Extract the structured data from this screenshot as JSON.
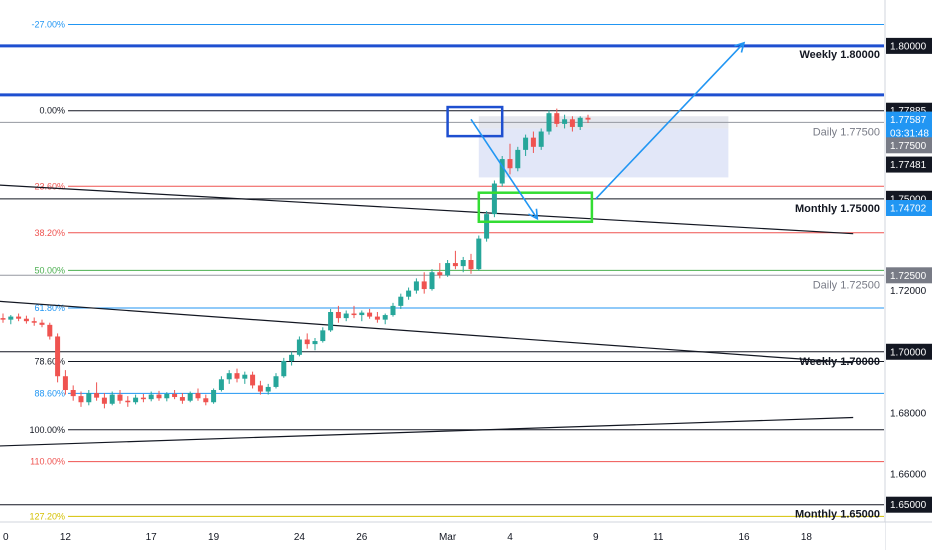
{
  "colors": {
    "up": "#26a69a",
    "down": "#ef5350",
    "blue_level": "#1e4fd0",
    "black_line": "#131722",
    "grey_line": "#9598a1",
    "fib_0": "#131722",
    "fib_236": "#ef5350",
    "fib_382": "#ef5350",
    "fib_50": "#4caf50",
    "fib_618": "#2196f3",
    "fib_786": "#131722",
    "fib_886": "#2196f3",
    "fib_100": "#131722",
    "fib_110": "#ef5350",
    "fib_127": "#d4c000",
    "fib_neg27": "#2196f3",
    "arrow": "#2196f3",
    "zone_fill": "#dde3f7",
    "zone_grey": "#e0e3eb",
    "box_blue": "#1e4fd0",
    "box_green": "#33dd33"
  },
  "chart_data": {
    "type": "candlestick",
    "title": "",
    "y_range": [
      1.645,
      1.815
    ],
    "x_ticks": [
      {
        "label": "0",
        "bar": 0
      },
      {
        "label": "12",
        "bar": 8
      },
      {
        "label": "17",
        "bar": 19
      },
      {
        "label": "19",
        "bar": 27
      },
      {
        "label": "24",
        "bar": 38
      },
      {
        "label": "26",
        "bar": 46
      },
      {
        "label": "Mar",
        "bar": 57
      },
      {
        "label": "4",
        "bar": 65
      },
      {
        "label": "9",
        "bar": 76
      },
      {
        "label": "11",
        "bar": 84
      },
      {
        "label": "16",
        "bar": 95
      },
      {
        "label": "18",
        "bar": 103
      }
    ],
    "bars_per_tick_gap": 8,
    "ohlc": [
      [
        1.711,
        1.7125,
        1.7095,
        1.7105
      ],
      [
        1.7105,
        1.712,
        1.709,
        1.7115
      ],
      [
        1.7115,
        1.7125,
        1.71,
        1.7108
      ],
      [
        1.7108,
        1.7118,
        1.7092,
        1.71
      ],
      [
        1.71,
        1.7112,
        1.7085,
        1.7095
      ],
      [
        1.7095,
        1.7105,
        1.708,
        1.7088
      ],
      [
        1.7088,
        1.7095,
        1.704,
        1.705
      ],
      [
        1.705,
        1.706,
        1.69,
        1.692
      ],
      [
        1.692,
        1.694,
        1.686,
        1.6875
      ],
      [
        1.6875,
        1.689,
        1.684,
        1.6855
      ],
      [
        1.6855,
        1.687,
        1.682,
        1.6835
      ],
      [
        1.6835,
        1.6875,
        1.6825,
        1.6865
      ],
      [
        1.6865,
        1.69,
        1.684,
        1.685
      ],
      [
        1.685,
        1.6865,
        1.6815,
        1.683
      ],
      [
        1.683,
        1.687,
        1.6825,
        1.686
      ],
      [
        1.686,
        1.6875,
        1.683,
        1.684
      ],
      [
        1.684,
        1.6855,
        1.682,
        1.6835
      ],
      [
        1.6835,
        1.686,
        1.6828,
        1.685
      ],
      [
        1.685,
        1.6862,
        1.6835,
        1.6845
      ],
      [
        1.6845,
        1.687,
        1.6838,
        1.686
      ],
      [
        1.686,
        1.6872,
        1.684,
        1.6848
      ],
      [
        1.6848,
        1.6868,
        1.6838,
        1.6862
      ],
      [
        1.6862,
        1.6875,
        1.6845,
        1.6852
      ],
      [
        1.6852,
        1.6865,
        1.683,
        1.684
      ],
      [
        1.684,
        1.687,
        1.6835,
        1.6865
      ],
      [
        1.6865,
        1.688,
        1.684,
        1.6848
      ],
      [
        1.6848,
        1.686,
        1.6825,
        1.6835
      ],
      [
        1.6835,
        1.688,
        1.683,
        1.6875
      ],
      [
        1.6875,
        1.692,
        1.687,
        1.691
      ],
      [
        1.691,
        1.694,
        1.6895,
        1.693
      ],
      [
        1.693,
        1.6945,
        1.69,
        1.6912
      ],
      [
        1.6912,
        1.6935,
        1.6895,
        1.6925
      ],
      [
        1.6925,
        1.6935,
        1.688,
        1.689
      ],
      [
        1.689,
        1.6905,
        1.686,
        1.687
      ],
      [
        1.687,
        1.6895,
        1.686,
        1.6885
      ],
      [
        1.6885,
        1.693,
        1.688,
        1.692
      ],
      [
        1.692,
        1.698,
        1.6915,
        1.697
      ],
      [
        1.697,
        1.7,
        1.6955,
        1.699
      ],
      [
        1.699,
        1.705,
        1.6985,
        1.704
      ],
      [
        1.704,
        1.706,
        1.701,
        1.7025
      ],
      [
        1.7025,
        1.7045,
        1.7005,
        1.7035
      ],
      [
        1.7035,
        1.708,
        1.703,
        1.707
      ],
      [
        1.707,
        1.714,
        1.7065,
        1.713
      ],
      [
        1.713,
        1.715,
        1.7095,
        1.711
      ],
      [
        1.711,
        1.7135,
        1.71,
        1.7125
      ],
      [
        1.7125,
        1.715,
        1.711,
        1.712
      ],
      [
        1.712,
        1.7135,
        1.71,
        1.7128
      ],
      [
        1.7128,
        1.714,
        1.7108,
        1.7115
      ],
      [
        1.7115,
        1.713,
        1.7095,
        1.7105
      ],
      [
        1.7105,
        1.7125,
        1.709,
        1.712
      ],
      [
        1.712,
        1.716,
        1.7115,
        1.715
      ],
      [
        1.715,
        1.719,
        1.714,
        1.718
      ],
      [
        1.718,
        1.721,
        1.717,
        1.72
      ],
      [
        1.72,
        1.724,
        1.719,
        1.723
      ],
      [
        1.723,
        1.726,
        1.719,
        1.7205
      ],
      [
        1.7205,
        1.727,
        1.72,
        1.726
      ],
      [
        1.726,
        1.729,
        1.724,
        1.725
      ],
      [
        1.725,
        1.73,
        1.7245,
        1.729
      ],
      [
        1.729,
        1.733,
        1.727,
        1.728
      ],
      [
        1.728,
        1.731,
        1.726,
        1.73
      ],
      [
        1.73,
        1.732,
        1.7255,
        1.727
      ],
      [
        1.727,
        1.738,
        1.7265,
        1.737
      ],
      [
        1.737,
        1.746,
        1.736,
        1.745
      ],
      [
        1.745,
        1.756,
        1.744,
        1.755
      ],
      [
        1.755,
        1.764,
        1.754,
        1.763
      ],
      [
        1.763,
        1.768,
        1.758,
        1.76
      ],
      [
        1.76,
        1.767,
        1.759,
        1.766
      ],
      [
        1.766,
        1.771,
        1.764,
        1.77
      ],
      [
        1.77,
        1.772,
        1.765,
        1.767
      ],
      [
        1.767,
        1.773,
        1.766,
        1.772
      ],
      [
        1.772,
        1.779,
        1.771,
        1.778
      ],
      [
        1.778,
        1.7795,
        1.7735,
        1.7745
      ],
      [
        1.7745,
        1.7775,
        1.773,
        1.776
      ],
      [
        1.776,
        1.777,
        1.772,
        1.7735
      ],
      [
        1.7735,
        1.777,
        1.7725,
        1.7765
      ],
      [
        1.7765,
        1.7775,
        1.7748,
        1.7759
      ]
    ],
    "fib_levels": [
      {
        "label": "-27.00%",
        "price": 1.807,
        "color_key": "fib_neg27"
      },
      {
        "label": "0.00%",
        "price": 1.7788,
        "color_key": "fib_0"
      },
      {
        "label": "23.60%",
        "price": 1.7541,
        "color_key": "fib_236"
      },
      {
        "label": "38.20%",
        "price": 1.7389,
        "color_key": "fib_382"
      },
      {
        "label": "50.00%",
        "price": 1.7266,
        "color_key": "fib_50"
      },
      {
        "label": "61.80%",
        "price": 1.7143,
        "color_key": "fib_618"
      },
      {
        "label": "78.60%",
        "price": 1.6968,
        "color_key": "fib_786"
      },
      {
        "label": "88.60%",
        "price": 1.6864,
        "color_key": "fib_886"
      },
      {
        "label": "100.00%",
        "price": 1.6745,
        "color_key": "fib_100"
      },
      {
        "label": "110.00%",
        "price": 1.6641,
        "color_key": "fib_110"
      },
      {
        "label": "127.20%",
        "price": 1.6462,
        "color_key": "fib_127"
      }
    ],
    "levels": [
      {
        "label": "Weekly 1.80000",
        "price": 1.8,
        "color_key": "blue_level",
        "style": "thick"
      },
      {
        "label": "Daily 1.77500",
        "price": 1.775,
        "color_key": "grey_line",
        "style": "grey"
      },
      {
        "label": "Monthly 1.75000",
        "price": 1.75,
        "color_key": "black_line",
        "style": "black"
      },
      {
        "label": "Daily 1.72500",
        "price": 1.725,
        "color_key": "grey_line",
        "style": "grey"
      },
      {
        "label": "Weekly 1.70000",
        "price": 1.7,
        "color_key": "black_line",
        "style": "black"
      },
      {
        "label": "Monthly 1.65000",
        "price": 1.65,
        "color_key": "black_line",
        "style": "black"
      }
    ],
    "extra_blue_line_price": 1.784,
    "price_labels": [
      {
        "text": "1.80000",
        "price": 1.8,
        "style": "dark"
      },
      {
        "text": "1.77885",
        "price": 1.7788,
        "style": "dark"
      },
      {
        "text": "1.77587",
        "price": 1.7759,
        "style": "blue"
      },
      {
        "text": "03:31:48",
        "price": 1.7715,
        "style": "blue"
      },
      {
        "text": "1.77500",
        "price": 1.7675,
        "style": "grey"
      },
      {
        "text": "1.77481",
        "price": 1.7612,
        "style": "dark"
      },
      {
        "text": "1.75000",
        "price": 1.75,
        "style": "dark"
      },
      {
        "text": "1.74702",
        "price": 1.747,
        "style": "blue"
      },
      {
        "text": "1.72500",
        "price": 1.725,
        "style": "grey"
      },
      {
        "text": "1.72000",
        "price": 1.72,
        "style": "plain"
      },
      {
        "text": "1.70000",
        "price": 1.7,
        "style": "dark"
      },
      {
        "text": "1.68000",
        "price": 1.68,
        "style": "plain"
      },
      {
        "text": "1.66000",
        "price": 1.66,
        "style": "plain"
      },
      {
        "text": "1.65000",
        "price": 1.65,
        "style": "dark"
      }
    ],
    "trendlines": [
      {
        "name": "upper-trendline",
        "from": {
          "bar": -0.5,
          "price": 1.7545
        },
        "to": {
          "bar": 109,
          "price": 1.7386
        }
      },
      {
        "name": "middle-trendline",
        "from": {
          "bar": -0.5,
          "price": 1.7165
        },
        "to": {
          "bar": 109,
          "price": 1.6964
        }
      },
      {
        "name": "lower-trendline",
        "from": {
          "bar": -0.5,
          "price": 1.6692
        },
        "to": {
          "bar": 109,
          "price": 1.6785
        }
      }
    ],
    "zones": [
      {
        "name": "target-zone",
        "from": {
          "bar": 61,
          "price": 1.773
        },
        "to": {
          "bar": 93,
          "price": 1.757
        },
        "fill_key": "zone_fill"
      },
      {
        "name": "grey-zone",
        "from": {
          "bar": 61,
          "price": 1.777
        },
        "to": {
          "bar": 93,
          "price": 1.773
        },
        "fill_key": "zone_grey"
      }
    ],
    "boxes": [
      {
        "name": "blue-box",
        "from": {
          "bar": 57,
          "price": 1.78
        },
        "to": {
          "bar": 64,
          "price": 1.7705
        },
        "color_key": "box_blue"
      },
      {
        "name": "green-box",
        "from": {
          "bar": 61,
          "price": 1.752
        },
        "to": {
          "bar": 75.5,
          "price": 1.7425
        },
        "color_key": "box_green"
      }
    ],
    "arrows": [
      {
        "name": "down-arrow",
        "from": {
          "bar": 60,
          "price": 1.776
        },
        "to": {
          "bar": 68.5,
          "price": 1.7435
        }
      },
      {
        "name": "up-arrow",
        "from": {
          "bar": 76,
          "price": 1.75
        },
        "to": {
          "bar": 95,
          "price": 1.801
        }
      }
    ]
  }
}
